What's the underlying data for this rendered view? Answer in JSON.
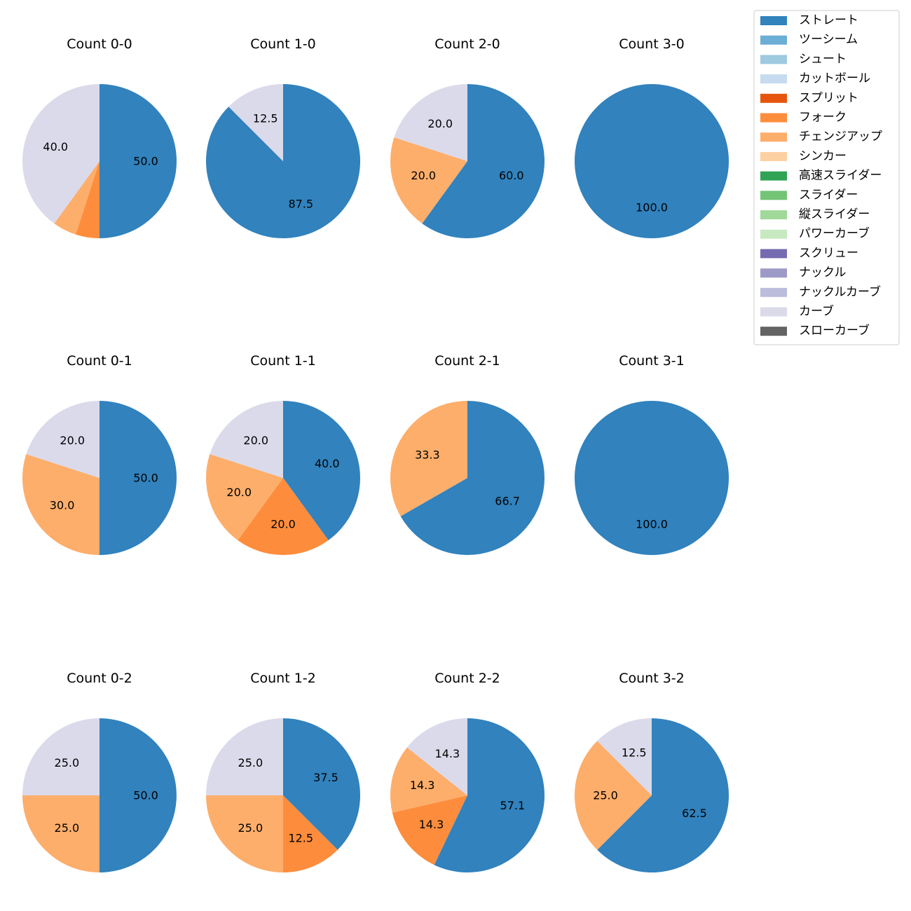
{
  "chart_data": {
    "type": "pie",
    "colors": {
      "ストレート": "#3182bd",
      "ツーシーム": "#6baed6",
      "シュート": "#9ecae1",
      "カットボール": "#c6dbef",
      "スプリット": "#e6550d",
      "フォーク": "#fd8d3c",
      "チェンジアップ": "#fdae6b",
      "シンカー": "#fdd0a2",
      "高速スライダー": "#31a354",
      "スライダー": "#74c476",
      "縦スライダー": "#a1d99b",
      "パワーカーブ": "#c7e9c0",
      "スクリュー": "#756bb1",
      "ナックル": "#9e9ac8",
      "ナックルカーブ": "#bcbddc",
      "カーブ": "#dadaeb",
      "スローカーブ": "#636363"
    },
    "legend": {
      "position": "top-right",
      "entries": [
        "ストレート",
        "ツーシーム",
        "シュート",
        "カットボール",
        "スプリット",
        "フォーク",
        "チェンジアップ",
        "シンカー",
        "高速スライダー",
        "スライダー",
        "縦スライダー",
        "パワーカーブ",
        "スクリュー",
        "ナックル",
        "ナックルカーブ",
        "カーブ",
        "スローカーブ"
      ]
    },
    "pies": [
      {
        "title": "Count 0-0",
        "slices": [
          {
            "name": "ストレート",
            "value": 50.0,
            "label": "50.0"
          },
          {
            "name": "フォーク",
            "value": 5.0,
            "label": ""
          },
          {
            "name": "チェンジアップ",
            "value": 5.0,
            "label": ""
          },
          {
            "name": "カーブ",
            "value": 40.0,
            "label": "40.0"
          }
        ]
      },
      {
        "title": "Count 1-0",
        "slices": [
          {
            "name": "ストレート",
            "value": 87.5,
            "label": "87.5"
          },
          {
            "name": "カーブ",
            "value": 12.5,
            "label": "12.5"
          }
        ]
      },
      {
        "title": "Count 2-0",
        "slices": [
          {
            "name": "ストレート",
            "value": 60.0,
            "label": "60.0"
          },
          {
            "name": "チェンジアップ",
            "value": 20.0,
            "label": "20.0"
          },
          {
            "name": "カーブ",
            "value": 20.0,
            "label": "20.0"
          }
        ]
      },
      {
        "title": "Count 3-0",
        "slices": [
          {
            "name": "ストレート",
            "value": 100.0,
            "label": "100.0"
          }
        ]
      },
      {
        "title": "Count 0-1",
        "slices": [
          {
            "name": "ストレート",
            "value": 50.0,
            "label": "50.0"
          },
          {
            "name": "チェンジアップ",
            "value": 30.0,
            "label": "30.0"
          },
          {
            "name": "カーブ",
            "value": 20.0,
            "label": "20.0"
          }
        ]
      },
      {
        "title": "Count 1-1",
        "slices": [
          {
            "name": "ストレート",
            "value": 40.0,
            "label": "40.0"
          },
          {
            "name": "フォーク",
            "value": 20.0,
            "label": "20.0"
          },
          {
            "name": "チェンジアップ",
            "value": 20.0,
            "label": "20.0"
          },
          {
            "name": "カーブ",
            "value": 20.0,
            "label": "20.0"
          }
        ]
      },
      {
        "title": "Count 2-1",
        "slices": [
          {
            "name": "ストレート",
            "value": 66.7,
            "label": "66.7"
          },
          {
            "name": "チェンジアップ",
            "value": 33.3,
            "label": "33.3"
          }
        ]
      },
      {
        "title": "Count 3-1",
        "slices": [
          {
            "name": "ストレート",
            "value": 100.0,
            "label": "100.0"
          }
        ]
      },
      {
        "title": "Count 0-2",
        "slices": [
          {
            "name": "ストレート",
            "value": 50.0,
            "label": "50.0"
          },
          {
            "name": "チェンジアップ",
            "value": 25.0,
            "label": "25.0"
          },
          {
            "name": "カーブ",
            "value": 25.0,
            "label": "25.0"
          }
        ]
      },
      {
        "title": "Count 1-2",
        "slices": [
          {
            "name": "ストレート",
            "value": 37.5,
            "label": "37.5"
          },
          {
            "name": "フォーク",
            "value": 12.5,
            "label": "12.5"
          },
          {
            "name": "チェンジアップ",
            "value": 25.0,
            "label": "25.0"
          },
          {
            "name": "カーブ",
            "value": 25.0,
            "label": "25.0"
          }
        ]
      },
      {
        "title": "Count 2-2",
        "slices": [
          {
            "name": "ストレート",
            "value": 57.1,
            "label": "57.1"
          },
          {
            "name": "フォーク",
            "value": 14.3,
            "label": "14.3"
          },
          {
            "name": "チェンジアップ",
            "value": 14.3,
            "label": "14.3"
          },
          {
            "name": "カーブ",
            "value": 14.3,
            "label": "14.3"
          }
        ]
      },
      {
        "title": "Count 3-2",
        "slices": [
          {
            "name": "ストレート",
            "value": 62.5,
            "label": "62.5"
          },
          {
            "name": "チェンジアップ",
            "value": 25.0,
            "label": "25.0"
          },
          {
            "name": "カーブ",
            "value": 12.5,
            "label": "12.5"
          }
        ]
      }
    ]
  }
}
